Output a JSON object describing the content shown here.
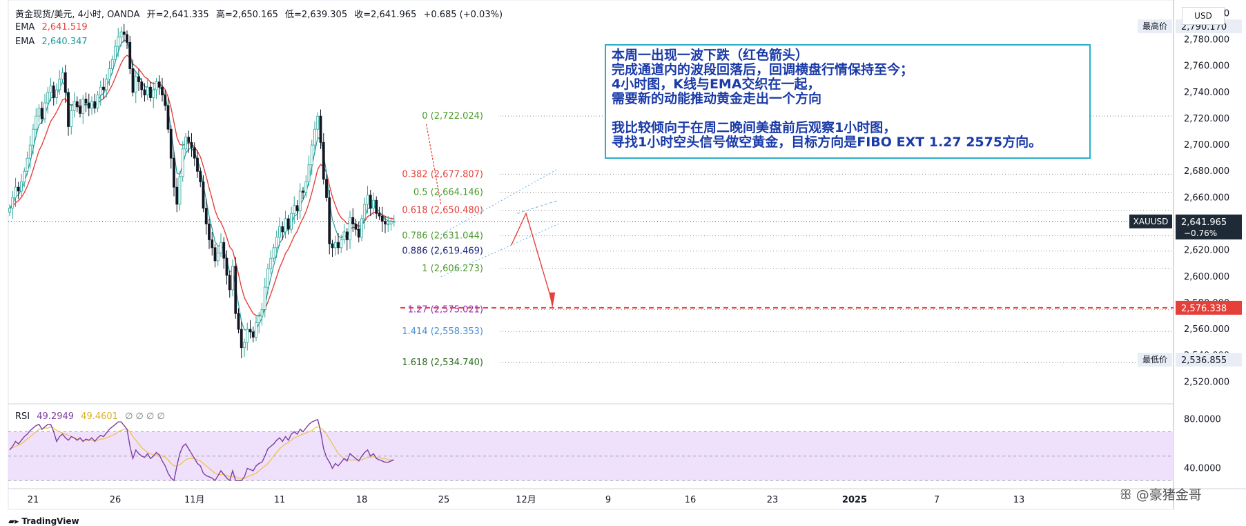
{
  "header": {
    "symbol": "黄金现货/美元, 4小时, OANDA",
    "open": "开=2,641.335",
    "high": "高=2,650.165",
    "low": "低=2,639.305",
    "close": "收=2,641.965",
    "change": "+0.685 (+0.03%)"
  },
  "indicators": {
    "ema1_label": "EMA",
    "ema1_value": "2,641.519",
    "ema1_color": "#e5403a",
    "ema2_label": "EMA",
    "ema2_value": "2,640.347",
    "ema2_color": "#1e9e9e",
    "rsi_label": "RSI",
    "rsi_value": "49.2949",
    "rsi_ma_value": "49.4601",
    "rsi_extra": "∅ ∅ ∅ ∅"
  },
  "currency_button": "USD",
  "annotation": [
    "本周一出现一波下跌（红色箭头）",
    "完成通道内的波段回落后，回调横盘行情保持至今；",
    "4小时图，K线与EMA交织在一起，",
    "需要新的动能推动黄金走出一个方向",
    "",
    "我比较倾向于在周二晚间美盘前后观察1小时图，",
    "寻找1小时空头信号做空黄金，目标方向是FIBO EXT 1.27 2575方向。"
  ],
  "watermark": "@豪猪金哥",
  "branding": "TradingView",
  "colors": {
    "up": "#26a69a",
    "down": "#131722",
    "fib_red": "#e5403a",
    "fib_green": "#4c9a2a",
    "fib_navy": "#1a237e",
    "fib_purple": "#9c27b0",
    "fib_blue": "#4a8fd6",
    "fib_dark": "#2e6b1f",
    "rsi_line": "#7e3f9e",
    "rsi_ma": "#f0c040",
    "rsi_band": "#efe0fb",
    "target": "#e5403a",
    "channel": "#5fb3e5"
  },
  "chart_data": {
    "type": "candlestick",
    "price_axis": {
      "ylim": [
        2506,
        2806
      ],
      "ticks": [
        "2,520.000",
        "2,540.000",
        "2,560.000",
        "2,580.000",
        "2,600.000",
        "2,620.000",
        "2,640.000",
        "2,660.000",
        "2,680.000",
        "2,700.000",
        "2,720.000",
        "2,740.000",
        "2,760.000",
        "2,780.000",
        "2,800.000"
      ],
      "tick_values": [
        2520,
        2540,
        2560,
        2580,
        2600,
        2620,
        2640,
        2660,
        2680,
        2700,
        2720,
        2740,
        2760,
        2780,
        2800
      ]
    },
    "time_axis": {
      "labels": [
        "21",
        "26",
        "11月",
        "11",
        "18",
        "25",
        "12月",
        "9",
        "16",
        "23",
        "2025",
        "7",
        "13"
      ],
      "label_bars": [
        8,
        36,
        63,
        92,
        120,
        148,
        176,
        204,
        232,
        260,
        288,
        316,
        344
      ]
    },
    "fib_levels": [
      {
        "label": "0 (2,722.024)",
        "value": 2722.024,
        "color": "fib_green"
      },
      {
        "label": "0.382 (2,677.807)",
        "value": 2677.807,
        "color": "fib_red"
      },
      {
        "label": "0.5 (2,664.146)",
        "value": 2664.146,
        "color": "fib_green"
      },
      {
        "label": "0.618 (2,650.480)",
        "value": 2650.48,
        "color": "fib_red"
      },
      {
        "label": "0.786 (2,631.044)",
        "value": 2631.044,
        "color": "fib_green"
      },
      {
        "label": "0.886 (2,619.469)",
        "value": 2619.469,
        "color": "fib_navy"
      },
      {
        "label": "1 (2,606.273)",
        "value": 2606.273,
        "color": "fib_green"
      },
      {
        "label": "1.27 (2,575.021)",
        "value": 2575.021,
        "color": "fib_purple"
      },
      {
        "label": "1.414 (2,558.353)",
        "value": 2558.353,
        "color": "fib_blue"
      },
      {
        "label": "1.618 (2,534.740)",
        "value": 2534.74,
        "color": "fib_dark"
      }
    ],
    "price_tags": [
      {
        "label": "最高价",
        "value_text": "2,790.170",
        "value": 2790.17
      },
      {
        "label": "XAUUSD",
        "value_text": "2,641.965",
        "sub": "−0.76%",
        "value": 2641.965
      },
      {
        "label": "",
        "value_text": "2,576.338",
        "value": 2576.338
      },
      {
        "label": "最低价",
        "value_text": "2,536.855",
        "value": 2536.855
      }
    ],
    "rsi_axis": {
      "ylim": [
        25,
        90
      ],
      "ticks": [
        "80.0000",
        "40.0000"
      ],
      "tick_values": [
        80,
        40
      ],
      "band": [
        30,
        70
      ]
    },
    "closes": [
      2652,
      2660,
      2668,
      2665,
      2672,
      2680,
      2690,
      2700,
      2712,
      2722,
      2728,
      2720,
      2732,
      2740,
      2745,
      2736,
      2742,
      2750,
      2755,
      2740,
      2714,
      2726,
      2733,
      2729,
      2724,
      2735,
      2732,
      2728,
      2733,
      2728,
      2738,
      2744,
      2742,
      2750,
      2758,
      2765,
      2775,
      2782,
      2786,
      2784,
      2778,
      2758,
      2740,
      2752,
      2748,
      2742,
      2738,
      2744,
      2736,
      2742,
      2748,
      2744,
      2738,
      2730,
      2712,
      2690,
      2668,
      2655,
      2676,
      2697,
      2706,
      2702,
      2698,
      2690,
      2680,
      2672,
      2652,
      2640,
      2628,
      2622,
      2612,
      2618,
      2626,
      2614,
      2601,
      2590,
      2608,
      2572,
      2560,
      2546,
      2550,
      2560,
      2558,
      2554,
      2565,
      2570,
      2575,
      2592,
      2606,
      2614,
      2622,
      2630,
      2638,
      2634,
      2644,
      2636,
      2648,
      2654,
      2650,
      2665,
      2664,
      2672,
      2685,
      2700,
      2712,
      2722,
      2702,
      2674,
      2660,
      2625,
      2622,
      2626,
      2622,
      2628,
      2634,
      2628,
      2645,
      2640,
      2636,
      2630,
      2644,
      2655,
      2662,
      2652,
      2658,
      2648,
      2646,
      2642,
      2640,
      2640,
      2642,
      2642
    ],
    "rsi": [
      55,
      58,
      62,
      60,
      63,
      66,
      68,
      71,
      73,
      75,
      76,
      72,
      74,
      76,
      76,
      70,
      62,
      66,
      68,
      65,
      63,
      66,
      65,
      63,
      65,
      62,
      64,
      63,
      65,
      62,
      65,
      67,
      66,
      69,
      72,
      74,
      76,
      78,
      78,
      75,
      72,
      58,
      48,
      55,
      52,
      50,
      49,
      52,
      48,
      50,
      53,
      51,
      46,
      42,
      36,
      32,
      30,
      42,
      52,
      58,
      60,
      56,
      52,
      48,
      44,
      42,
      36,
      34,
      33,
      32,
      30,
      34,
      38,
      35,
      32,
      30,
      38,
      30,
      30,
      30,
      33,
      40,
      39,
      38,
      42,
      44,
      45,
      50,
      56,
      58,
      60,
      63,
      65,
      62,
      66,
      63,
      68,
      70,
      68,
      72,
      70,
      73,
      76,
      78,
      79,
      80,
      70,
      56,
      49,
      45,
      40,
      44,
      42,
      45,
      48,
      46,
      52,
      50,
      48,
      46,
      50,
      53,
      55,
      50,
      52,
      48,
      47,
      46,
      45,
      45,
      46,
      47
    ],
    "rsi_ma": [
      56,
      57,
      58,
      59,
      60,
      62,
      64,
      66,
      68,
      70,
      72,
      72,
      73,
      73,
      74,
      73,
      71,
      70,
      69,
      68,
      67,
      66,
      65,
      64,
      64,
      63,
      63,
      63,
      63,
      63,
      63,
      64,
      64,
      65,
      66,
      67,
      68,
      70,
      71,
      72,
      72,
      70,
      66,
      63,
      60,
      57,
      55,
      53,
      52,
      51,
      51,
      51,
      50,
      49,
      47,
      44,
      42,
      42,
      43,
      45,
      47,
      48,
      48,
      48,
      47,
      46,
      44,
      42,
      40,
      38,
      36,
      35,
      35,
      35,
      34,
      33,
      33,
      33,
      32,
      32,
      32,
      33,
      34,
      35,
      36,
      38,
      40,
      42,
      44,
      47,
      50,
      53,
      56,
      58,
      60,
      61,
      63,
      65,
      66,
      67,
      68,
      69,
      70,
      71,
      73,
      74,
      73,
      71,
      68,
      64,
      60,
      56,
      52,
      50,
      48,
      47,
      47,
      47,
      47,
      47,
      47,
      48,
      49,
      49,
      50,
      49,
      49,
      48,
      48,
      47,
      47,
      47
    ]
  }
}
